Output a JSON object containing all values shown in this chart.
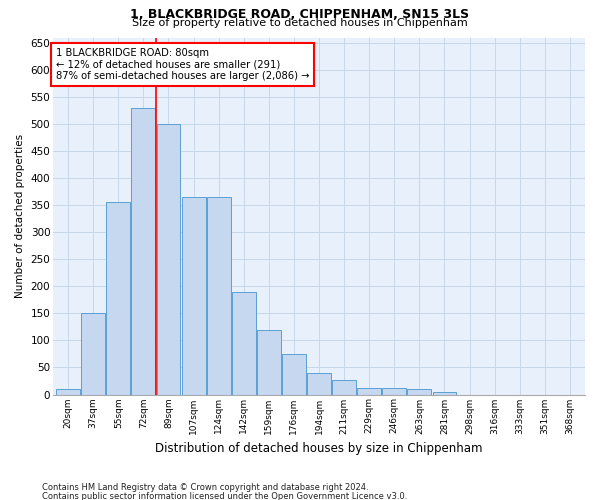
{
  "title1": "1, BLACKBRIDGE ROAD, CHIPPENHAM, SN15 3LS",
  "title2": "Size of property relative to detached houses in Chippenham",
  "xlabel": "Distribution of detached houses by size in Chippenham",
  "ylabel": "Number of detached properties",
  "categories": [
    "20sqm",
    "37sqm",
    "55sqm",
    "72sqm",
    "89sqm",
    "107sqm",
    "124sqm",
    "142sqm",
    "159sqm",
    "176sqm",
    "194sqm",
    "211sqm",
    "229sqm",
    "246sqm",
    "263sqm",
    "281sqm",
    "298sqm",
    "316sqm",
    "333sqm",
    "351sqm",
    "368sqm"
  ],
  "values": [
    10,
    150,
    355,
    530,
    500,
    365,
    365,
    190,
    120,
    75,
    40,
    27,
    12,
    12,
    10,
    5,
    0,
    0,
    0,
    0,
    0
  ],
  "bar_color": "#c5d8f0",
  "bar_edge_color": "#5a9fd4",
  "grid_color": "#c8d8e8",
  "background_color": "#e8f1fb",
  "red_line_x": 3.5,
  "annotation_text": "1 BLACKBRIDGE ROAD: 80sqm\n← 12% of detached houses are smaller (291)\n87% of semi-detached houses are larger (2,086) →",
  "ylim": [
    0,
    660
  ],
  "yticks": [
    0,
    50,
    100,
    150,
    200,
    250,
    300,
    350,
    400,
    450,
    500,
    550,
    600,
    650
  ],
  "footnote1": "Contains HM Land Registry data © Crown copyright and database right 2024.",
  "footnote2": "Contains public sector information licensed under the Open Government Licence v3.0."
}
